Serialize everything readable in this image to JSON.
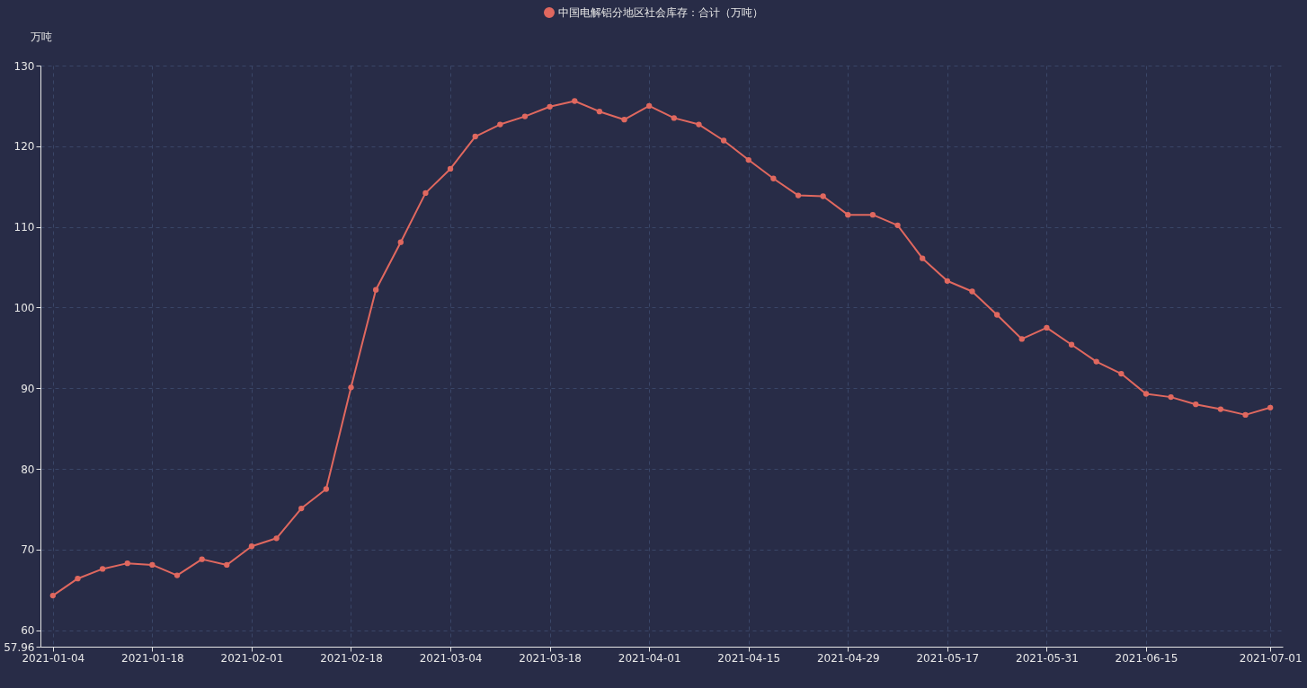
{
  "chart_data": {
    "type": "line",
    "ylabel": "万吨",
    "categories": [
      "2021-01-04",
      null,
      null,
      null,
      "2021-01-18",
      null,
      null,
      null,
      "2021-02-01",
      null,
      null,
      null,
      "2021-02-18",
      null,
      null,
      null,
      "2021-03-04",
      null,
      null,
      null,
      "2021-03-18",
      null,
      null,
      null,
      "2021-04-01",
      null,
      null,
      null,
      "2021-04-15",
      null,
      null,
      null,
      "2021-04-29",
      null,
      null,
      null,
      "2021-05-17",
      null,
      null,
      null,
      "2021-05-31",
      null,
      null,
      null,
      "2021-06-15",
      null,
      null,
      null,
      null,
      "2021-07-01"
    ],
    "series": [
      {
        "name": "中国电解铝分地区社会库存：合计（万吨）",
        "color": "#e0685f",
        "values": [
          64.3,
          66.4,
          67.6,
          68.3,
          68.1,
          66.8,
          68.8,
          68.1,
          70.4,
          71.4,
          75.1,
          77.5,
          90.1,
          102.2,
          108.1,
          114.2,
          117.2,
          121.2,
          122.7,
          123.7,
          124.9,
          125.6,
          124.3,
          123.3,
          125.0,
          123.5,
          122.7,
          120.7,
          118.3,
          116.0,
          113.9,
          113.8,
          111.5,
          111.5,
          110.2,
          106.1,
          103.3,
          102.0,
          99.1,
          96.1,
          97.5,
          95.4,
          93.3,
          91.8,
          89.3,
          88.9,
          88.0,
          87.4,
          86.7,
          87.6
        ]
      }
    ],
    "ylim": [
      57.96,
      130
    ],
    "yticks": [
      {
        "value": 57.96,
        "label": "57.96"
      },
      60,
      70,
      80,
      90,
      100,
      110,
      120,
      130
    ],
    "grid": true,
    "legend": "top",
    "marker": "circle",
    "line_style": "solid"
  }
}
